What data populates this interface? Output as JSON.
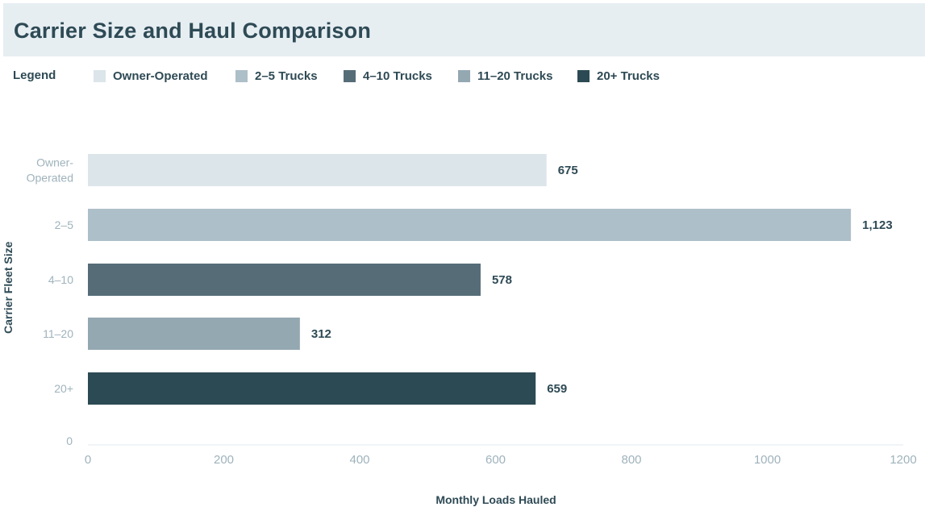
{
  "chart_data": {
    "type": "bar",
    "orientation": "horizontal",
    "title": "Carrier Size and Haul Comparison",
    "xlabel": "Monthly Loads Hauled",
    "ylabel": "Carrier Fleet Size",
    "xlim": [
      0,
      1200
    ],
    "x_ticks": [
      "0",
      "200",
      "400",
      "600",
      "800",
      "1000",
      "1200"
    ],
    "y_zero_label": "0",
    "legend_title": "Legend",
    "legend_position": "top-left",
    "grid": false,
    "categories": [
      {
        "label_lines": [
          "Owner-",
          "Operated"
        ],
        "value": 675,
        "value_label": "675",
        "color": "#dbe5ea"
      },
      {
        "label_lines": [
          "2–5"
        ],
        "value": 1123,
        "value_label": "1,123",
        "color": "#adbfc8"
      },
      {
        "label_lines": [
          "4–10"
        ],
        "value": 578,
        "value_label": "578",
        "color": "#566d77"
      },
      {
        "label_lines": [
          "11–20"
        ],
        "value": 312,
        "value_label": "312",
        "color": "#94a8b2"
      },
      {
        "label_lines": [
          "20+"
        ],
        "value": 659,
        "value_label": "659",
        "color": "#2c4a53"
      }
    ],
    "legend": [
      {
        "name": "Owner-Operated",
        "color": "#dbe5ea"
      },
      {
        "name": "2–5 Trucks",
        "color": "#adbfc8"
      },
      {
        "name": "4–10 Trucks",
        "color": "#566d77"
      },
      {
        "name": "11–20 Trucks",
        "color": "#94a8b2"
      },
      {
        "name": "20+ Trucks",
        "color": "#2c4a53"
      }
    ]
  },
  "colors": {
    "text_dark": "#2e4a55",
    "tick_text": "#9fb3bc",
    "axis_line": "#e3eaed",
    "header_bg": "#e6eef2"
  }
}
